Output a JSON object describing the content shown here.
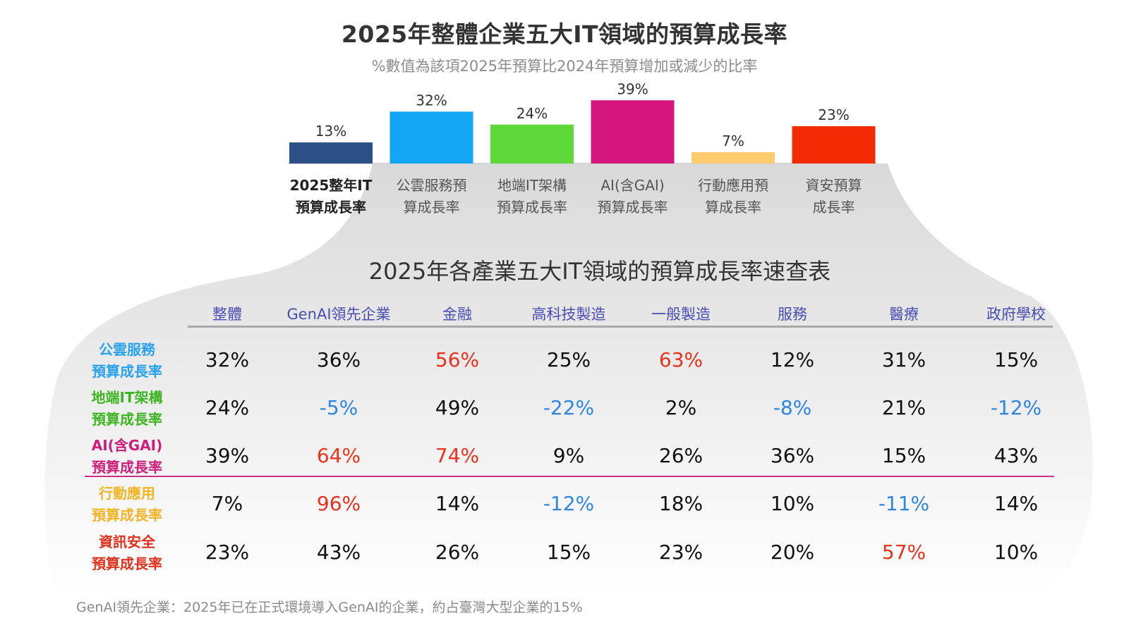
{
  "header": {
    "title": "2025年整體企業五大IT領域的預算成長率",
    "subtitle": "%數值為該項2025年預算比2024年預算增加或減少的比率"
  },
  "chart_data": [
    {
      "type": "bar",
      "title": "2025年整體企業五大IT領域的預算成長率",
      "subtitle": "%數值為該項2025年預算比2024年預算增加或減少的比率",
      "categories": [
        [
          "2025整年IT",
          "預算成長率"
        ],
        [
          "公雲服務預",
          "算成長率"
        ],
        [
          "地端IT架構",
          "預算成長率"
        ],
        [
          "AI(含GAI)",
          "預算成長率"
        ],
        [
          "行動應用預",
          "算成長率"
        ],
        [
          "資安預算",
          "成長率"
        ]
      ],
      "values": [
        13,
        32,
        24,
        39,
        7,
        23
      ],
      "data_labels": [
        "13%",
        "32%",
        "24%",
        "39%",
        "7%",
        "23%"
      ],
      "colors": [
        "#2b4f87",
        "#12a6f5",
        "#5fd839",
        "#d4157e",
        "#fbcd6e",
        "#f32b05"
      ],
      "ylim": [
        0,
        40
      ],
      "grid": false
    },
    {
      "type": "table",
      "title": "2025年各產業五大IT領域的預算成長率速查表",
      "columns": [
        "整體",
        "GenAI領先企業",
        "金融",
        "高科技製造",
        "一般製造",
        "服務",
        "醫療",
        "政府學校"
      ],
      "rows": [
        {
          "label": [
            "公雲服務",
            "預算成長率"
          ],
          "color": "#28a2ec",
          "values": [
            "32%",
            "36%",
            "56%",
            "25%",
            "63%",
            "12%",
            "31%",
            "15%"
          ],
          "styles": [
            "",
            "",
            "hi",
            "",
            "hi",
            "",
            "",
            ""
          ]
        },
        {
          "label": [
            "地端IT架構",
            "預算成長率"
          ],
          "color": "#3cb521",
          "values": [
            "24%",
            "-5%",
            "49%",
            "-22%",
            "2%",
            "-8%",
            "21%",
            "-12%"
          ],
          "styles": [
            "",
            "lo",
            "",
            "lo",
            "",
            "lo",
            "",
            "lo"
          ]
        },
        {
          "label": [
            "AI(含GAI)",
            "預算成長率"
          ],
          "color": "#cc1f7a",
          "values": [
            "39%",
            "64%",
            "74%",
            "9%",
            "26%",
            "36%",
            "15%",
            "43%"
          ],
          "styles": [
            "",
            "hi",
            "hi",
            "",
            "",
            "",
            "",
            ""
          ]
        },
        {
          "label": [
            "行動應用",
            "預算成長率"
          ],
          "color": "#f0b427",
          "values": [
            "7%",
            "96%",
            "14%",
            "-12%",
            "18%",
            "10%",
            "-11%",
            "14%"
          ],
          "styles": [
            "",
            "hi",
            "",
            "lo",
            "",
            "",
            "lo",
            ""
          ]
        },
        {
          "label": [
            "資訊安全",
            "預算成長率"
          ],
          "color": "#e0301e",
          "values": [
            "23%",
            "43%",
            "26%",
            "15%",
            "23%",
            "20%",
            "57%",
            "10%"
          ],
          "styles": [
            "",
            "",
            "",
            "",
            "",
            "",
            "hi",
            ""
          ]
        }
      ]
    }
  ],
  "footnote": "GenAI領先企業：2025年已在正式環境導入GenAI的企業，約占臺灣大型企業的15%"
}
